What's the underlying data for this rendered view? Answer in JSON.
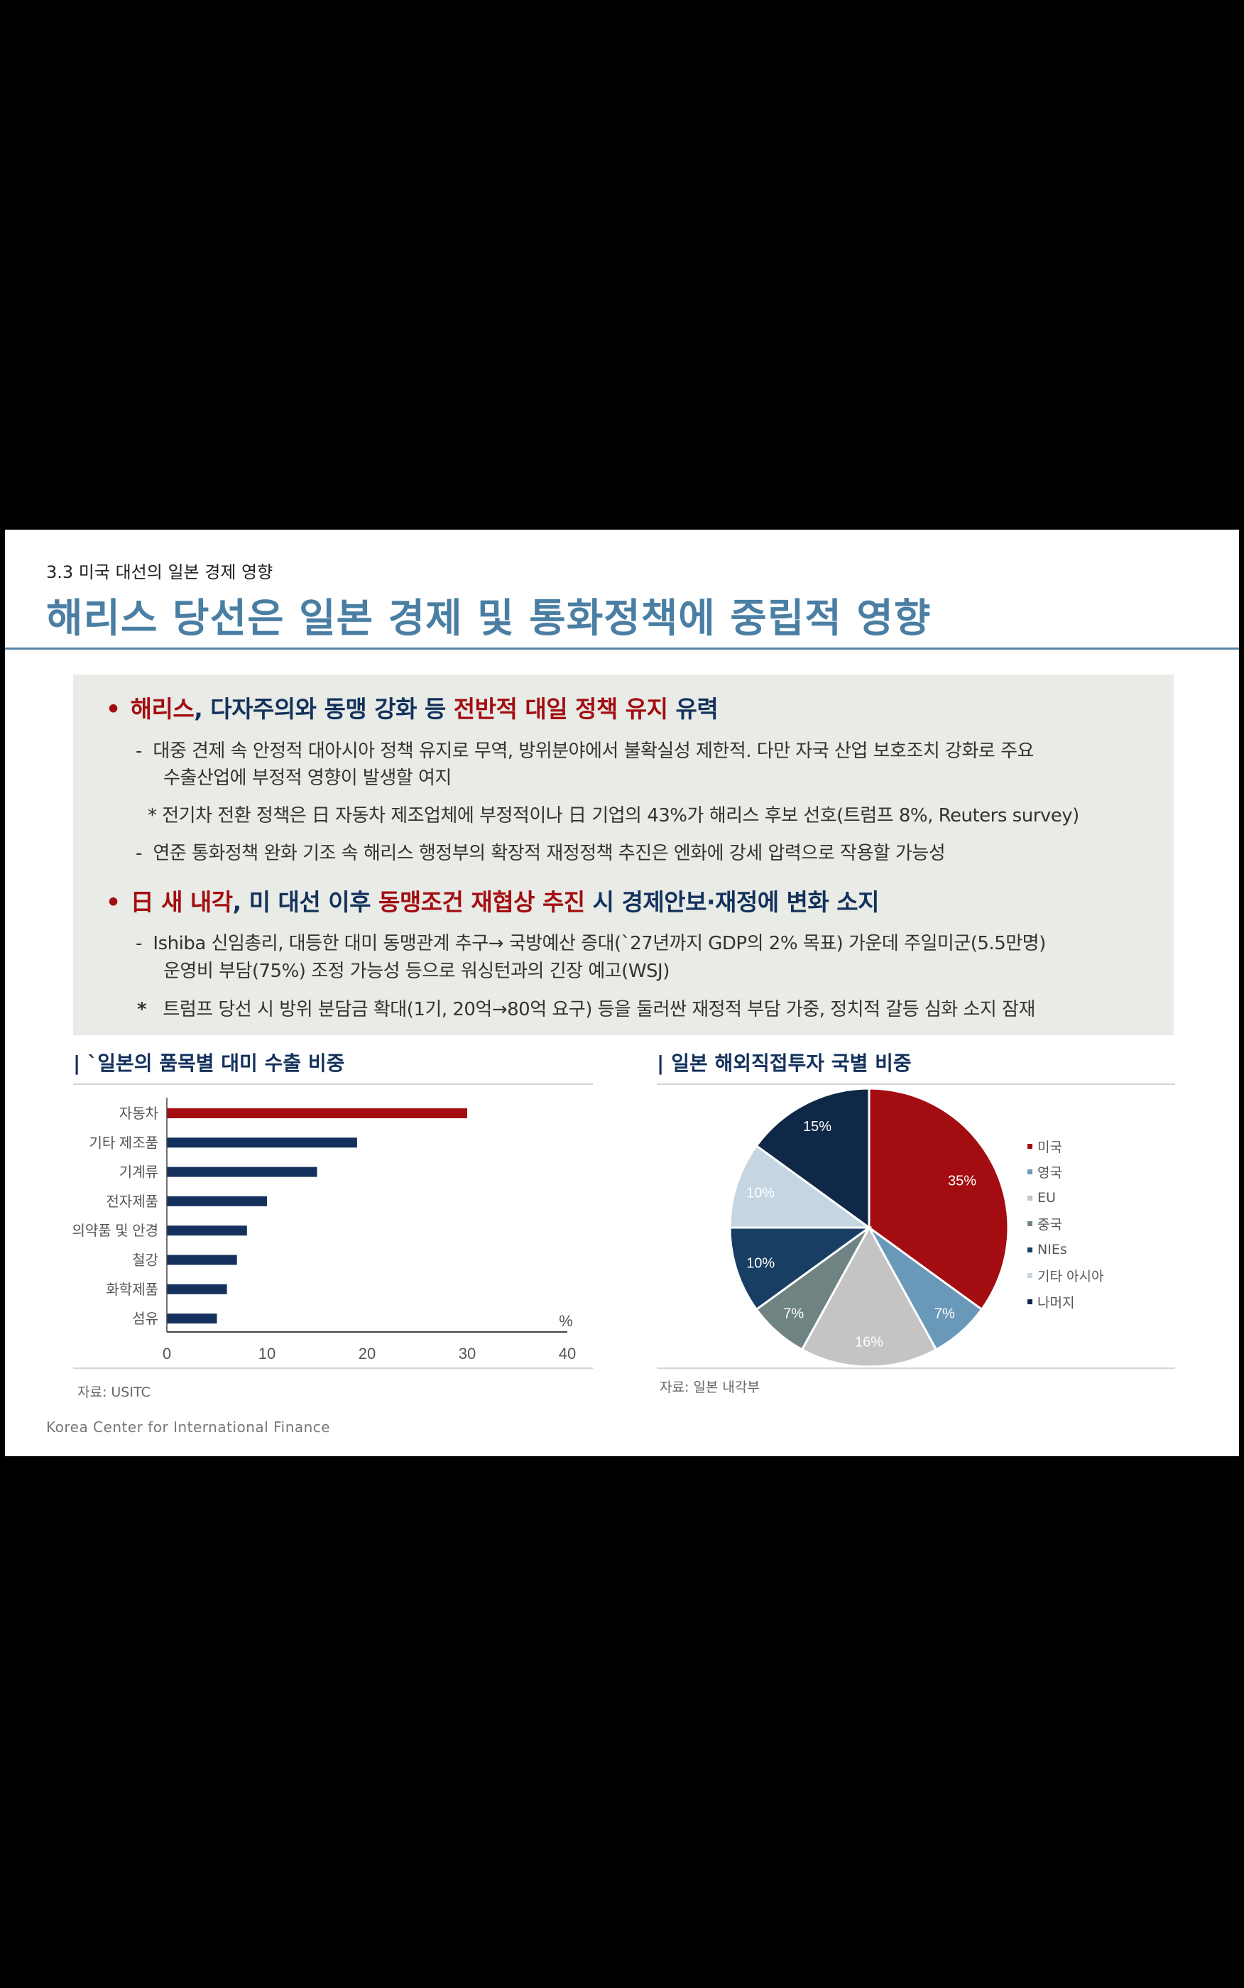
{
  "header": {
    "section": "3.3 미국 대선의 일본 경제 영향",
    "title": "해리스 당선은 일본 경제 및 통화정책에 중립적 영향"
  },
  "bullets": {
    "b1": {
      "p1": "해리스",
      "p2": ", 다자주의와 동맹 강화 등 ",
      "p3": "전반적 대일 정책 유지",
      "p4": " 유력"
    },
    "b1_sub1_line1": "대중 견제 속 안정적 대아시아 정책 유지로 무역, 방위분야에서 불확실성 제한적. 다만 자국 산업 보호조치 강화로 주요",
    "b1_sub1_line2": "수출산업에 부정적 영향이 발생할 여지",
    "b1_note": "* 전기차 전환 정책은 日 자동차 제조업체에 부정적이나 日 기업의 43%가 해리스 후보 선호(트럼프 8%, Reuters survey)",
    "b1_sub2": "연준 통화정책 완화 기조 속 해리스 행정부의 확장적 재정정책 추진은 엔화에 강세 압력으로 작용할 가능성",
    "b2": {
      "p1": "日 새 내각",
      "p2": ", 미 대선 이후 ",
      "p3": "동맹조건 재협상 추진",
      "p4": " 시 경제안보·재정에 변화 소지"
    },
    "b2_sub1_line1": "Ishiba 신임총리, 대등한 대미 동맹관계 추구→ 국방예산 증대(`27년까지 GDP의 2% 목표) 가운데 주일미군(5.5만명)",
    "b2_sub1_line2": "운영비 부담(75%) 조정 가능성 등으로 워싱턴과의 긴장 예고(WSJ)",
    "b2_note_mark": "*",
    "b2_note": "트럼프 당선 시 방위 분담금 확대(1기, 20억→80억 요구) 등을 둘러싼 재정적 부담 가중, 정치적 갈등 심화 소지 잠재",
    "dash": "-"
  },
  "charts": {
    "bar_title": "`일본의 품목별 대미 수출 비중",
    "bar_source": "자료: USITC",
    "pie_title": "일본  해외직접투자 국별 비중",
    "pie_source": "자료:  일본 내각부",
    "title_bar": "|"
  },
  "footer": "Korea Center for International Finance",
  "colors": {
    "red": "#a30d11",
    "navy": "#13315c",
    "title_blue": "#4a7fa3"
  },
  "chart_data": [
    {
      "type": "bar",
      "orientation": "horizontal",
      "title": "`일본의 품목별 대미 수출 비중",
      "categories": [
        "자동차",
        "기타 제조품",
        "기계류",
        "전자제품",
        "의약품 및 안경",
        "철강",
        "화학제품",
        "섬유"
      ],
      "values": [
        30,
        19,
        15,
        10,
        8,
        7,
        6,
        5
      ],
      "bar_colors": [
        "#a30d11",
        "#13315c",
        "#13315c",
        "#13315c",
        "#13315c",
        "#13315c",
        "#13315c",
        "#13315c"
      ],
      "xlabel": "%",
      "xticks": [
        0,
        10,
        20,
        30,
        40
      ],
      "xlim": [
        0,
        40
      ],
      "grid": false
    },
    {
      "type": "pie",
      "title": "일본  해외직접투자 국별 비중",
      "labels": [
        "미국",
        "영국",
        "EU",
        "중국",
        "NIEs",
        "기타 아시아",
        "나머지"
      ],
      "values": [
        35,
        7,
        16,
        7,
        10,
        10,
        15
      ],
      "value_labels": [
        "35%",
        "7%",
        "16%",
        "7%",
        "10%",
        "10%",
        "15%"
      ],
      "colors": [
        "#a30d11",
        "#6a98b8",
        "#c4c4c4",
        "#6f8383",
        "#183f63",
        "#c5d5e2",
        "#102848"
      ],
      "label_colors": [
        "#ffffff",
        "#ffffff",
        "#ffffff",
        "#ffffff",
        "#ffffff",
        "#ffffff",
        "#ffffff"
      ],
      "legend_position": "right"
    }
  ]
}
